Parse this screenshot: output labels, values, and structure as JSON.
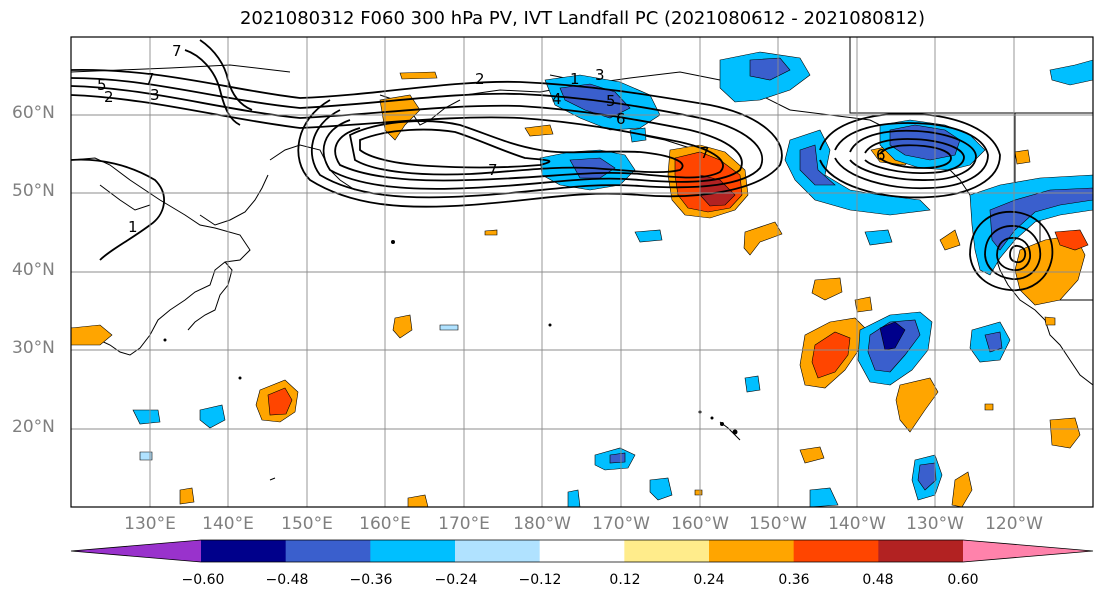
{
  "title": "2021080312 F060 300 hPa PV, IVT Landfall PC (2021080612 - 2021080812)",
  "lat_labels": [
    "60°N",
    "50°N",
    "40°N",
    "30°N",
    "20°N"
  ],
  "lon_labels": [
    "130°E",
    "140°E",
    "150°E",
    "160°E",
    "170°E",
    "180°W",
    "170°W",
    "160°W",
    "150°W",
    "140°W",
    "130°W",
    "120°W"
  ],
  "colorbar": {
    "ticks": [
      "−0.60",
      "−0.48",
      "−0.36",
      "−0.24",
      "−0.12",
      "0.12",
      "0.24",
      "0.36",
      "0.48",
      "0.60"
    ],
    "colors": [
      "#9932cc",
      "#00008b",
      "#3a5fcd",
      "#00bfff",
      "#b0e2ff",
      "#ffffff",
      "#ffec8b",
      "#ffa500",
      "#ff4500",
      "#b22222",
      "#ff82ab"
    ]
  },
  "contour_labels": [
    "7",
    "5",
    "2",
    "3",
    "7",
    "2",
    "1",
    "3",
    "4",
    "5",
    "6",
    "7",
    "7",
    "6",
    "1"
  ]
}
